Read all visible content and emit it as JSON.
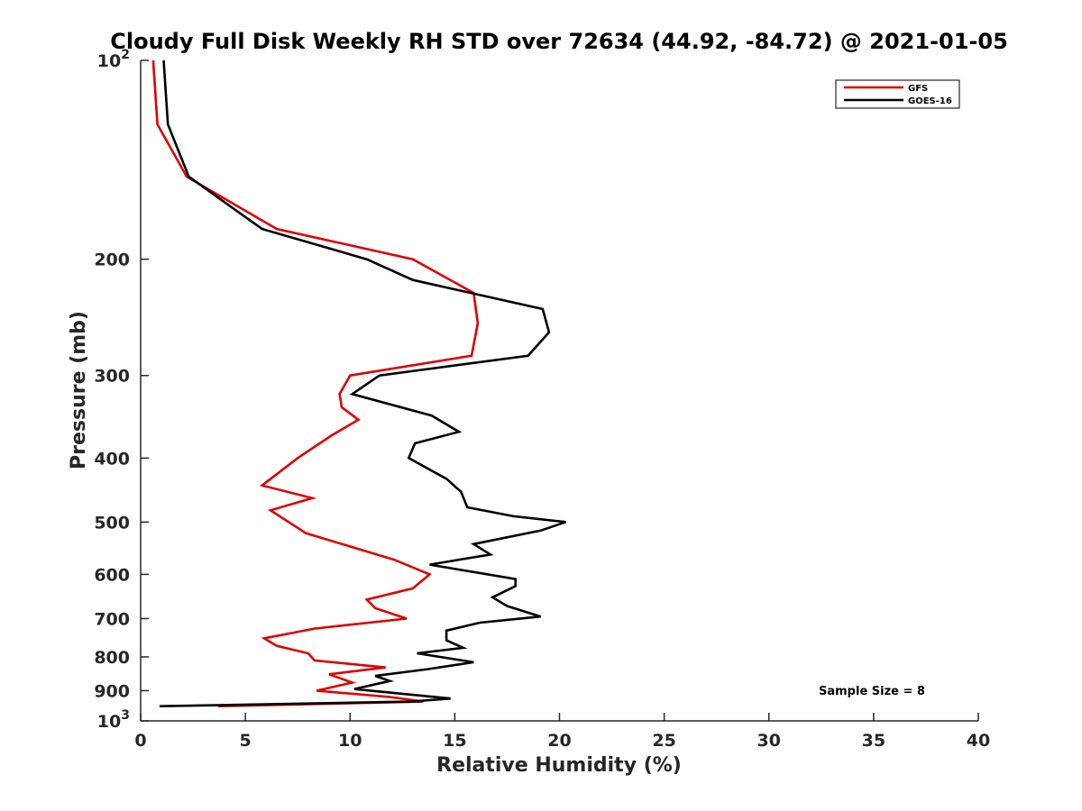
{
  "chart_data": {
    "type": "line",
    "title": "Cloudy Full Disk Weekly RH STD over 72634 (44.92, -84.72) @ 2021-01-05",
    "xlabel": "Relative Humidity (%)",
    "ylabel": "Pressure (mb)",
    "xlim": [
      0,
      40
    ],
    "ylim": [
      100,
      1000
    ],
    "y_scale": "log",
    "y_reversed": true,
    "grid": false,
    "legend_position": "top-right",
    "x_ticks": [
      "0",
      "5",
      "10",
      "15",
      "20",
      "25",
      "30",
      "35",
      "40"
    ],
    "y_ticks": [
      {
        "value": 100,
        "base": "10",
        "exp": "2"
      },
      {
        "value": 200,
        "label": "200"
      },
      {
        "value": 300,
        "label": "300"
      },
      {
        "value": 400,
        "label": "400"
      },
      {
        "value": 500,
        "label": "500"
      },
      {
        "value": 600,
        "label": "600"
      },
      {
        "value": 700,
        "label": "700"
      },
      {
        "value": 800,
        "label": "800"
      },
      {
        "value": 900,
        "label": "900"
      },
      {
        "value": 1000,
        "base": "10",
        "exp": "3"
      }
    ],
    "annotation": "Sample Size = 8",
    "series": [
      {
        "name": "GFS",
        "color": "#dd0000",
        "points": [
          [
            0.6,
            100
          ],
          [
            0.8,
            125
          ],
          [
            2.2,
            150
          ],
          [
            6.5,
            180
          ],
          [
            13.0,
            200
          ],
          [
            15.9,
            225
          ],
          [
            16.1,
            250
          ],
          [
            15.8,
            280
          ],
          [
            10.0,
            300
          ],
          [
            9.5,
            320
          ],
          [
            9.6,
            335
          ],
          [
            10.4,
            350
          ],
          [
            9.1,
            370
          ],
          [
            7.5,
            400
          ],
          [
            5.8,
            440
          ],
          [
            8.2,
            460
          ],
          [
            6.2,
            480
          ],
          [
            7.9,
            520
          ],
          [
            12.1,
            570
          ],
          [
            13.8,
            600
          ],
          [
            13.0,
            630
          ],
          [
            10.8,
            655
          ],
          [
            11.2,
            675
          ],
          [
            12.7,
            700
          ],
          [
            8.3,
            725
          ],
          [
            5.9,
            750
          ],
          [
            6.5,
            770
          ],
          [
            8.0,
            790
          ],
          [
            8.3,
            810
          ],
          [
            11.7,
            830
          ],
          [
            9.0,
            850
          ],
          [
            10.1,
            875
          ],
          [
            8.4,
            900
          ],
          [
            11.9,
            920
          ],
          [
            13.5,
            935
          ],
          [
            3.7,
            950
          ]
        ]
      },
      {
        "name": "GOES-16",
        "color": "#000000",
        "points": [
          [
            1.1,
            100
          ],
          [
            1.3,
            125
          ],
          [
            2.3,
            150
          ],
          [
            5.8,
            180
          ],
          [
            10.8,
            200
          ],
          [
            13.0,
            215
          ],
          [
            19.2,
            238
          ],
          [
            19.5,
            258
          ],
          [
            18.5,
            280
          ],
          [
            11.4,
            300
          ],
          [
            10.1,
            320
          ],
          [
            13.9,
            345
          ],
          [
            15.2,
            365
          ],
          [
            13.1,
            380
          ],
          [
            12.8,
            400
          ],
          [
            14.6,
            430
          ],
          [
            15.3,
            450
          ],
          [
            15.6,
            475
          ],
          [
            17.8,
            490
          ],
          [
            20.3,
            500
          ],
          [
            19.1,
            515
          ],
          [
            15.9,
            540
          ],
          [
            16.7,
            560
          ],
          [
            13.8,
            580
          ],
          [
            17.9,
            610
          ],
          [
            17.9,
            625
          ],
          [
            16.8,
            650
          ],
          [
            17.5,
            670
          ],
          [
            19.1,
            695
          ],
          [
            16.2,
            710
          ],
          [
            14.6,
            730
          ],
          [
            14.6,
            755
          ],
          [
            15.4,
            775
          ],
          [
            13.2,
            790
          ],
          [
            15.9,
            815
          ],
          [
            13.7,
            835
          ],
          [
            11.2,
            855
          ],
          [
            11.9,
            870
          ],
          [
            10.2,
            895
          ],
          [
            14.8,
            925
          ],
          [
            12.9,
            935
          ],
          [
            0.9,
            950
          ]
        ]
      }
    ]
  }
}
